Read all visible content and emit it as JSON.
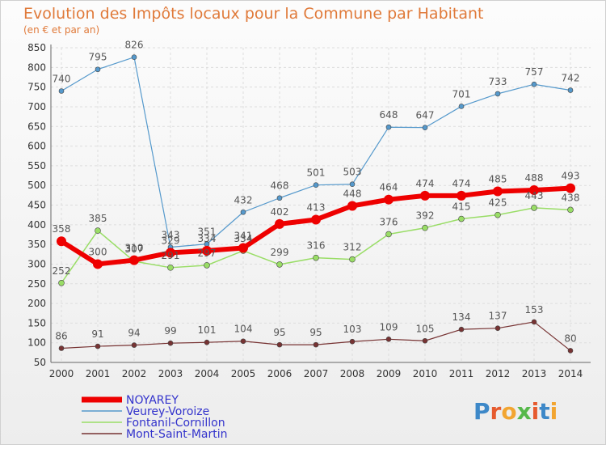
{
  "chart_data": {
    "type": "line",
    "title": "Evolution des Impôts locaux pour la Commune par Habitant",
    "subtitle": "(en € et par an)",
    "x": [
      "2000",
      "2001",
      "2002",
      "2003",
      "2004",
      "2005",
      "2006",
      "2007",
      "2008",
      "2009",
      "2010",
      "2011",
      "2012",
      "2013",
      "2014"
    ],
    "ylim": [
      50,
      850
    ],
    "yticks": [
      50,
      100,
      150,
      200,
      250,
      300,
      350,
      400,
      450,
      500,
      550,
      600,
      650,
      700,
      750,
      800,
      850
    ],
    "grid": true,
    "legend_position": "bottom-left",
    "series": [
      {
        "name": "NOYAREY",
        "color": "#ee0000",
        "values": [
          358,
          300,
          310,
          329,
          334,
          341,
          402,
          413,
          448,
          464,
          474,
          474,
          485,
          488,
          493
        ]
      },
      {
        "name": "Veurey-Voroize",
        "color": "#5599cc",
        "values": [
          740,
          795,
          826,
          343,
          351,
          432,
          468,
          501,
          503,
          648,
          647,
          701,
          733,
          757,
          742
        ]
      },
      {
        "name": "Fontanil-Cornillon",
        "color": "#99dd66",
        "values": [
          252,
          385,
          307,
          291,
          297,
          334,
          299,
          316,
          312,
          376,
          392,
          415,
          425,
          443,
          438
        ]
      },
      {
        "name": "Mont-Saint-Martin",
        "color": "#773333",
        "values": [
          86,
          91,
          94,
          99,
          101,
          104,
          95,
          95,
          103,
          109,
          105,
          134,
          137,
          153,
          80
        ]
      }
    ]
  },
  "logo": {
    "text": "Proxiti"
  }
}
